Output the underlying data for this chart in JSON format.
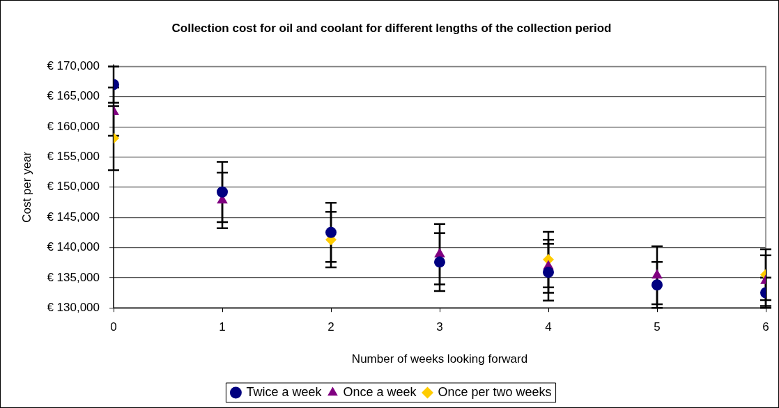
{
  "chart_data": {
    "type": "scatter",
    "title": "Collection cost for oil and coolant for different lengths of the collection period",
    "xlabel": "Number of weeks looking forward",
    "ylabel": "Cost per year",
    "x": [
      0,
      1,
      2,
      3,
      4,
      5,
      6
    ],
    "series": [
      {
        "name": "Twice a week",
        "color": "#000080",
        "marker": "circle",
        "values": [
          167000,
          149200,
          142500,
          137600,
          135900,
          133800,
          132500
        ],
        "errors": [
          3000,
          5000,
          4900,
          4800,
          4700,
          3800,
          2500
        ]
      },
      {
        "name": "Once a week",
        "color": "#800080",
        "marker": "triangle",
        "values": [
          162500,
          147800,
          null,
          138900,
          136900,
          135400,
          134500
        ],
        "errors": [
          4000,
          4600,
          null,
          5000,
          4400,
          4800,
          4200
        ]
      },
      {
        "name": "Once per two weeks",
        "color": "#ffcc00",
        "marker": "diamond",
        "values": [
          158100,
          null,
          141300,
          null,
          138000,
          null,
          135500
        ],
        "errors": [
          5300,
          null,
          4600,
          null,
          4600,
          null,
          4200
        ]
      }
    ],
    "xlim": [
      0,
      6
    ],
    "xticks": [
      0,
      1,
      2,
      3,
      4,
      5,
      6
    ],
    "ylim": [
      130000,
      170000
    ],
    "yticks": [
      {
        "value": 130000,
        "label": "€ 130,000"
      },
      {
        "value": 135000,
        "label": "€ 135,000"
      },
      {
        "value": 140000,
        "label": "€ 140,000"
      },
      {
        "value": 145000,
        "label": "€ 145,000"
      },
      {
        "value": 150000,
        "label": "€ 150,000"
      },
      {
        "value": 155000,
        "label": "€ 155,000"
      },
      {
        "value": 160000,
        "label": "€ 160,000"
      },
      {
        "value": 165000,
        "label": "€ 165,000"
      },
      {
        "value": 170000,
        "label": "€ 170,000"
      }
    ],
    "grid": "y",
    "legend": "bottom"
  }
}
